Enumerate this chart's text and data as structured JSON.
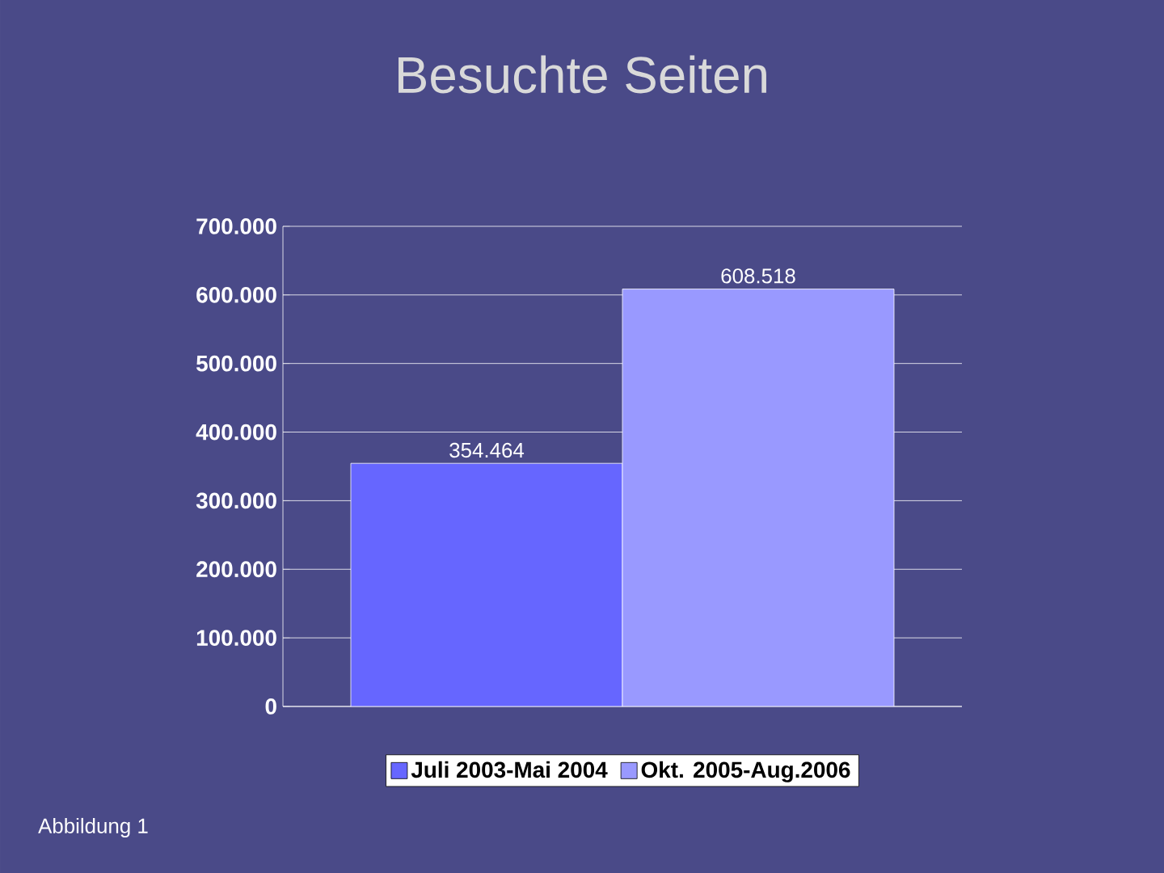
{
  "chart_data": {
    "type": "bar",
    "title": "Besuchte Seiten",
    "categories": [
      null
    ],
    "series": [
      {
        "name": "Juli 2003-Mai 2004",
        "color": "#6666ff",
        "values": [
          354464
        ],
        "value_labels": [
          "354.464"
        ]
      },
      {
        "name": "Okt. 2005-Aug.2006",
        "color": "#9999ff",
        "values": [
          608518
        ],
        "value_labels": [
          "608.518"
        ]
      }
    ],
    "ylim": [
      0,
      700000
    ],
    "yticks": [
      0,
      {
        "value": 100000,
        "label": "100.000"
      },
      {
        "value": 200000,
        "label": "200.000"
      },
      {
        "value": 300000,
        "label": "300.000"
      },
      {
        "value": 400000,
        "label": "400.000"
      },
      {
        "value": 500000,
        "label": "500.000"
      },
      {
        "value": 600000,
        "label": "600.000"
      },
      {
        "value": 700000,
        "label": "700.000"
      }
    ],
    "grid": "y",
    "legend": "bottom",
    "annotations": [
      "Abbildung 1"
    ]
  }
}
